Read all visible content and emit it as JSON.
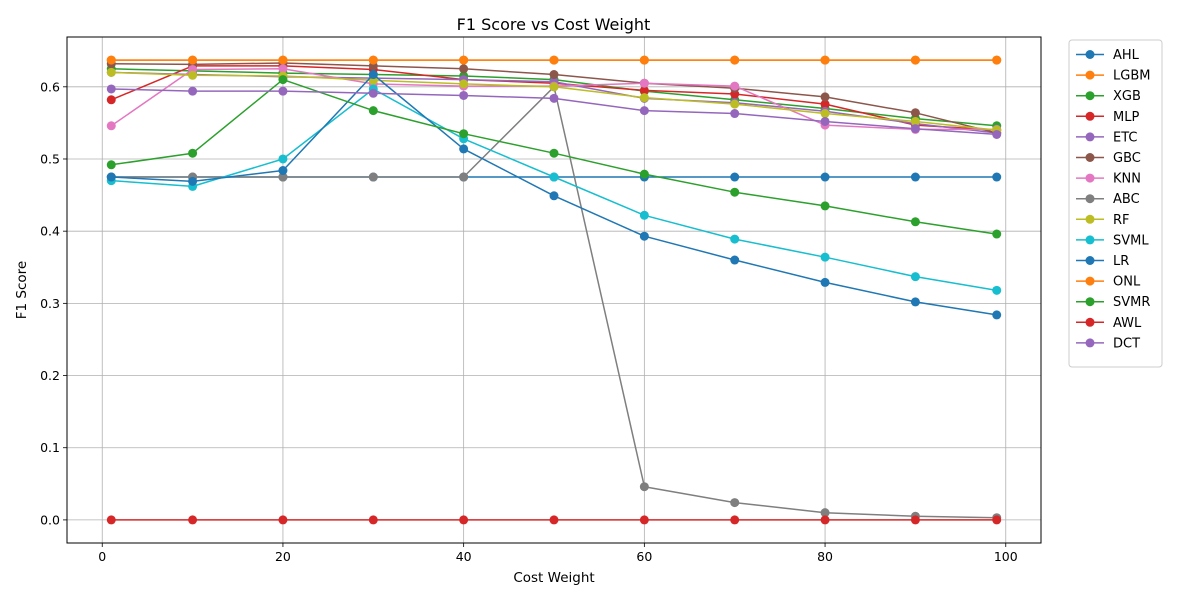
{
  "chart_data": {
    "type": "line",
    "title": "F1 Score vs Cost Weight",
    "xlabel": "Cost Weight",
    "ylabel": "F1 Score",
    "xlim": [
      -3.9,
      103.9
    ],
    "ylim": [
      -0.032,
      0.669
    ],
    "xticks": [
      0,
      20,
      40,
      60,
      80,
      100
    ],
    "xtick_labels": [
      "0",
      "20",
      "40",
      "60",
      "80",
      "100"
    ],
    "yticks": [
      0.0,
      0.1,
      0.2,
      0.3,
      0.4,
      0.5,
      0.6
    ],
    "ytick_labels": [
      "0.0",
      "0.1",
      "0.2",
      "0.3",
      "0.4",
      "0.5",
      "0.6"
    ],
    "grid": true,
    "legend_position": "outside-right",
    "x": [
      1,
      10,
      20,
      30,
      40,
      50,
      60,
      70,
      80,
      90,
      99
    ],
    "series": [
      {
        "name": "AHL",
        "color": "#1f77b4",
        "values": [
          0.475,
          0.475,
          0.475,
          0.475,
          0.475,
          0.475,
          0.475,
          0.475,
          0.475,
          0.475,
          0.475
        ]
      },
      {
        "name": "LGBM",
        "color": "#ff7f0e",
        "values": [
          0.637,
          0.637,
          0.637,
          0.637,
          0.637,
          0.637,
          0.637,
          0.637,
          0.637,
          0.637,
          0.637
        ]
      },
      {
        "name": "XGB",
        "color": "#2ca02c",
        "values": [
          0.625,
          0.622,
          0.619,
          0.617,
          0.615,
          0.61,
          0.594,
          0.582,
          0.57,
          0.556,
          0.546
        ]
      },
      {
        "name": "MLP",
        "color": "#d62728",
        "values": [
          0.582,
          0.629,
          0.629,
          0.624,
          0.61,
          0.605,
          0.595,
          0.59,
          0.576,
          0.547,
          0.54
        ]
      },
      {
        "name": "ETC",
        "color": "#9467bd",
        "values": [
          0.62,
          0.617,
          0.614,
          0.612,
          0.61,
          0.607,
          0.584,
          0.578,
          0.566,
          0.549,
          0.536
        ]
      },
      {
        "name": "GBC",
        "color": "#8c564b",
        "values": [
          0.632,
          0.631,
          0.633,
          0.629,
          0.625,
          0.617,
          0.605,
          0.598,
          0.586,
          0.564,
          0.536
        ]
      },
      {
        "name": "KNN",
        "color": "#e377c2",
        "values": [
          0.546,
          0.624,
          0.625,
          0.604,
          0.601,
          0.601,
          0.605,
          0.601,
          0.547,
          0.541,
          0.541
        ]
      },
      {
        "name": "ABC",
        "color": "#7f7f7f",
        "values": [
          0.475,
          0.475,
          0.475,
          0.475,
          0.475,
          0.6,
          0.046,
          0.024,
          0.01,
          0.005,
          0.003
        ]
      },
      {
        "name": "RF",
        "color": "#bcbd22",
        "values": [
          0.62,
          0.616,
          0.615,
          0.609,
          0.604,
          0.6,
          0.585,
          0.576,
          0.563,
          0.552,
          0.54
        ]
      },
      {
        "name": "SVML",
        "color": "#17becf",
        "values": [
          0.47,
          0.462,
          0.5,
          0.597,
          0.528,
          0.475,
          0.422,
          0.389,
          0.364,
          0.337,
          0.318
        ]
      },
      {
        "name": "LR",
        "color": "#1f77b4",
        "values": [
          0.475,
          0.469,
          0.484,
          0.617,
          0.514,
          0.449,
          0.393,
          0.36,
          0.329,
          0.302,
          0.284
        ]
      },
      {
        "name": "ONL",
        "color": "#ff7f0e",
        "values": [
          0.637,
          0.637,
          0.637,
          0.637,
          0.637,
          0.637,
          0.637,
          0.637,
          0.637,
          0.637,
          0.637
        ]
      },
      {
        "name": "SVMR",
        "color": "#2ca02c",
        "values": [
          0.492,
          0.508,
          0.61,
          0.567,
          0.535,
          0.508,
          0.479,
          0.454,
          0.435,
          0.413,
          0.396
        ]
      },
      {
        "name": "AWL",
        "color": "#d62728",
        "values": [
          0.0,
          0.0,
          0.0,
          0.0,
          0.0,
          0.0,
          0.0,
          0.0,
          0.0,
          0.0,
          0.0
        ]
      },
      {
        "name": "DCT",
        "color": "#9467bd",
        "values": [
          0.597,
          0.594,
          0.594,
          0.591,
          0.588,
          0.584,
          0.567,
          0.563,
          0.552,
          0.542,
          0.534
        ]
      }
    ]
  }
}
